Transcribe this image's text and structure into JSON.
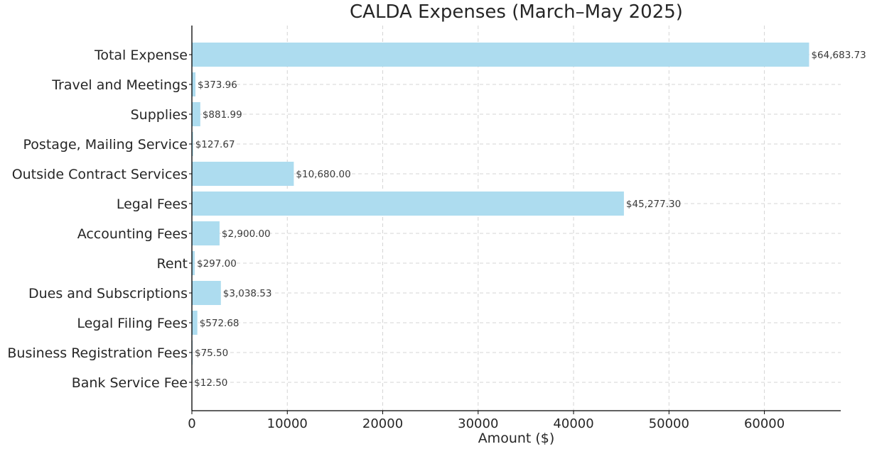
{
  "chart_data": {
    "type": "bar",
    "orientation": "horizontal",
    "title": "CALDA Expenses (March–May 2025)",
    "xlabel": "Amount ($)",
    "ylabel": "",
    "xlim": [
      0,
      68000
    ],
    "xticks": [
      0,
      10000,
      20000,
      30000,
      40000,
      50000,
      60000
    ],
    "grid": true,
    "bar_color": "#ADDCEF",
    "categories": [
      "Total Expense",
      "Travel and Meetings",
      "Supplies",
      "Postage, Mailing Service",
      "Outside Contract Services",
      "Legal Fees",
      "Accounting Fees",
      "Rent",
      "Dues and Subscriptions",
      "Legal Filing Fees",
      "Business Registration Fees",
      "Bank Service Fee"
    ],
    "values": [
      64683.73,
      373.96,
      881.99,
      127.67,
      10680.0,
      45277.3,
      2900.0,
      297.0,
      3038.53,
      572.68,
      75.5,
      12.5
    ],
    "data_labels": [
      "$64,683.73",
      "$373.96",
      "$881.99",
      "$127.67",
      "$10,680.00",
      "$45,277.30",
      "$2,900.00",
      "$297.00",
      "$3,038.53",
      "$572.68",
      "$75.50",
      "$12.50"
    ]
  }
}
